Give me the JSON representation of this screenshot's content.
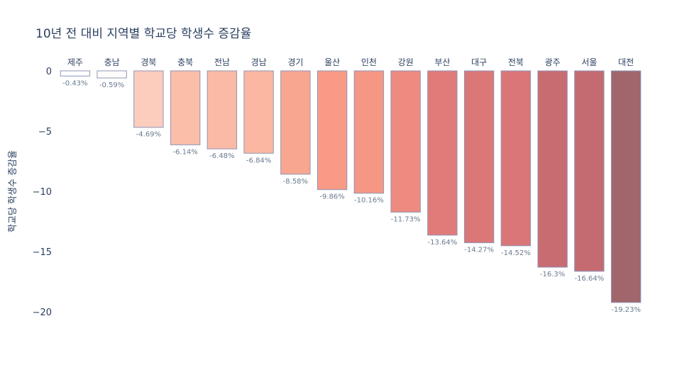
{
  "chart_data": {
    "type": "bar",
    "title": "10년 전 대비 지역별 학교당 학생수 증감율",
    "xlabel": "",
    "ylabel": "학교당 학생수 증감율",
    "ylim": [
      -20,
      0
    ],
    "yticks": [
      0,
      -5,
      -10,
      -15,
      -20
    ],
    "ytick_labels": [
      "0",
      "−5",
      "−10",
      "−15",
      "−20"
    ],
    "x_axis_position": "top",
    "grid": false,
    "categories": [
      "제주",
      "충남",
      "경북",
      "충북",
      "전남",
      "경남",
      "경기",
      "울산",
      "인천",
      "강원",
      "부산",
      "대구",
      "전북",
      "광주",
      "서울",
      "대전"
    ],
    "values": [
      -0.43,
      -0.59,
      -4.69,
      -6.14,
      -6.48,
      -6.84,
      -8.58,
      -9.86,
      -10.16,
      -11.73,
      -13.64,
      -14.27,
      -14.52,
      -16.3,
      -16.64,
      -19.23
    ],
    "data_labels": [
      "-0.43%",
      "-0.59%",
      "-4.69%",
      "-6.14%",
      "-6.48%",
      "-6.84%",
      "-8.58%",
      "-9.86%",
      "-10.16%",
      "-11.73%",
      "-13.64%",
      "-14.27%",
      "-14.52%",
      "-16.3%",
      "-16.64%",
      "-19.23%"
    ],
    "colorscale": [
      "#ffffff",
      "#fdd8cc",
      "#fbb8a2",
      "#f89a86",
      "#e77f7b",
      "#cc6c72",
      "#a0666c"
    ],
    "bar_border_color": "#8f96b8"
  }
}
